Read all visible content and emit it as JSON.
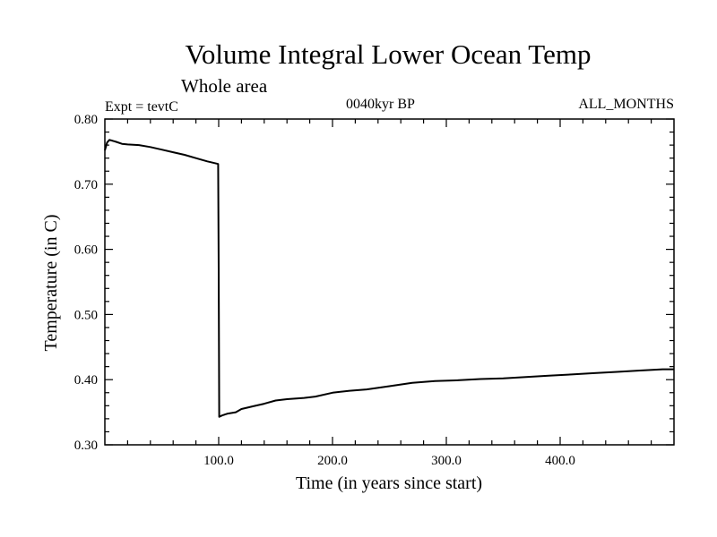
{
  "chart_data": {
    "type": "line",
    "title": "Volume Integral Lower Ocean Temp",
    "subtitle": "Whole area",
    "experiment": "Expt = tevtC",
    "period": "0040kyr BP",
    "months": "ALL_MONTHS",
    "xlabel": "Time (in years since start)",
    "ylabel": "Temperature (in C)",
    "xlim": [
      0,
      500
    ],
    "ylim": [
      0.3,
      0.8
    ],
    "xticks": [
      100,
      200,
      300,
      400
    ],
    "xtick_labels": [
      "100.0",
      "200.0",
      "300.0",
      "400.0"
    ],
    "yticks": [
      0.3,
      0.4,
      0.5,
      0.6,
      0.7,
      0.8
    ],
    "ytick_labels": [
      "0.30",
      "0.40",
      "0.50",
      "0.60",
      "0.70",
      "0.80"
    ],
    "grid": false,
    "legend": "none",
    "line_color": "#000000",
    "series": [
      {
        "x": [
          0,
          1,
          2,
          4,
          6,
          10,
          15,
          20,
          30,
          40,
          50,
          60,
          70,
          80,
          90,
          95,
          99.5,
          100,
          100.5,
          103,
          108,
          115,
          120,
          130,
          140,
          150,
          160,
          175,
          185,
          200,
          215,
          230,
          250,
          270,
          290,
          310,
          330,
          350,
          370,
          390,
          410,
          430,
          450,
          470,
          490,
          500
        ],
        "y": [
          0.752,
          0.758,
          0.764,
          0.768,
          0.767,
          0.765,
          0.762,
          0.761,
          0.76,
          0.757,
          0.753,
          0.749,
          0.745,
          0.74,
          0.735,
          0.733,
          0.731,
          0.57,
          0.343,
          0.345,
          0.348,
          0.35,
          0.355,
          0.359,
          0.363,
          0.368,
          0.37,
          0.372,
          0.374,
          0.38,
          0.383,
          0.385,
          0.39,
          0.395,
          0.398,
          0.399,
          0.401,
          0.402,
          0.404,
          0.406,
          0.408,
          0.41,
          0.412,
          0.414,
          0.416,
          0.416
        ]
      }
    ]
  }
}
